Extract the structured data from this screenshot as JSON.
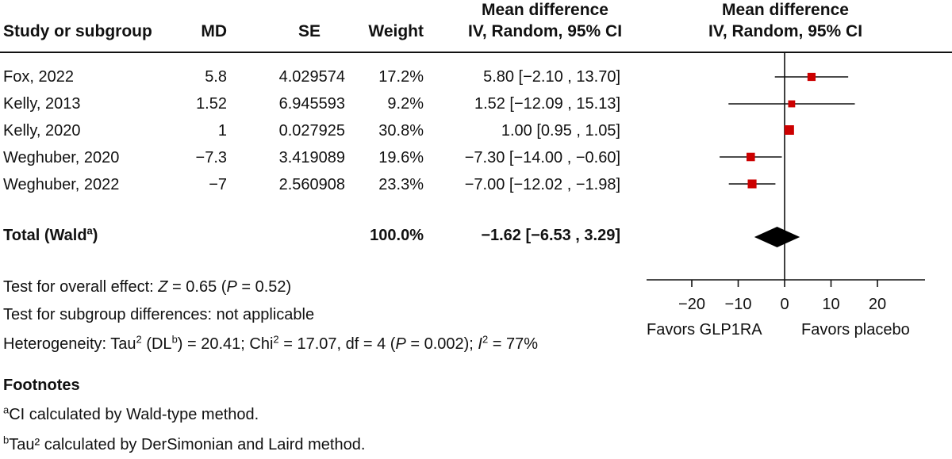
{
  "columns": {
    "study": "Study or subgroup",
    "md": "MD",
    "se": "SE",
    "weight": "Weight",
    "ci_line1": "Mean difference",
    "ci_line2": "IV, Random, 95% CI",
    "plot_line1": "Mean difference",
    "plot_line2": "IV, Random, 95% CI"
  },
  "studies": [
    {
      "name": "Fox, 2022",
      "md": "5.8",
      "se": "4.029574",
      "weight": "17.2%",
      "ci": "5.80 [−2.10 , 13.70]"
    },
    {
      "name": "Kelly, 2013",
      "md": "1.52",
      "se": "6.945593",
      "weight": "9.2%",
      "ci": "1.52 [−12.09 , 15.13]"
    },
    {
      "name": "Kelly, 2020",
      "md": "1",
      "se": "0.027925",
      "weight": "30.8%",
      "ci": "1.00 [0.95 , 1.05]"
    },
    {
      "name": "Weghuber, 2020",
      "md": "−7.3",
      "se": "3.419089",
      "weight": "19.6%",
      "ci": "−7.30 [−14.00 , −0.60]"
    },
    {
      "name": "Weghuber, 2022",
      "md": "−7",
      "se": "2.560908",
      "weight": "23.3%",
      "ci": "−7.00 [−12.02 , −1.98]"
    }
  ],
  "total": {
    "label": "Total (Wald",
    "label_sup": "a",
    "label_close": ")",
    "weight": "100.0%",
    "ci": "−1.62 [−6.53 , 3.29]"
  },
  "tests": {
    "overall_prefix": "Test for overall effect: ",
    "overall_z": "Z",
    "overall_mid": " = 0.65 (",
    "overall_p": "P",
    "overall_end": " = 0.52)",
    "subgroup": "Test for subgroup differences: not applicable",
    "het_a": "Heterogeneity: Tau",
    "het_sup1": "2",
    "het_b": " (DL",
    "het_sup2": "b",
    "het_c": ") = 20.41; Chi",
    "het_sup3": "2",
    "het_d": " = 17.07, df = 4 (",
    "het_p": "P",
    "het_e": " = 0.002); ",
    "het_i": "I",
    "het_sup4": "2",
    "het_f": " = 77%"
  },
  "footnotes": {
    "title": "Footnotes",
    "a_mark": "a",
    "a_text": "CI calculated by Wald-type method.",
    "b_mark": "b",
    "b_text": "Tau² calculated by DerSimonian and Laird method."
  },
  "favors": {
    "left": "Favors GLP1RA",
    "right": "Favors placebo"
  },
  "colors": {
    "marker": "#cc0000",
    "line": "#111111",
    "diamond": "#000000"
  },
  "chart_data": {
    "type": "forest",
    "x_ticks": [
      -20,
      -10,
      0,
      10,
      20
    ],
    "xlim": [
      -30,
      30
    ],
    "null_line": 0,
    "studies": [
      {
        "name": "Fox, 2022",
        "estimate": 5.8,
        "lower": -2.1,
        "upper": 13.7,
        "weight": 17.2
      },
      {
        "name": "Kelly, 2013",
        "estimate": 1.52,
        "lower": -12.09,
        "upper": 15.13,
        "weight": 9.2
      },
      {
        "name": "Kelly, 2020",
        "estimate": 1.0,
        "lower": 0.95,
        "upper": 1.05,
        "weight": 30.8
      },
      {
        "name": "Weghuber, 2020",
        "estimate": -7.3,
        "lower": -14.0,
        "upper": -0.6,
        "weight": 19.6
      },
      {
        "name": "Weghuber, 2022",
        "estimate": -7.0,
        "lower": -12.02,
        "upper": -1.98,
        "weight": 23.3
      }
    ],
    "pooled": {
      "estimate": -1.62,
      "lower": -6.53,
      "upper": 3.29
    }
  }
}
